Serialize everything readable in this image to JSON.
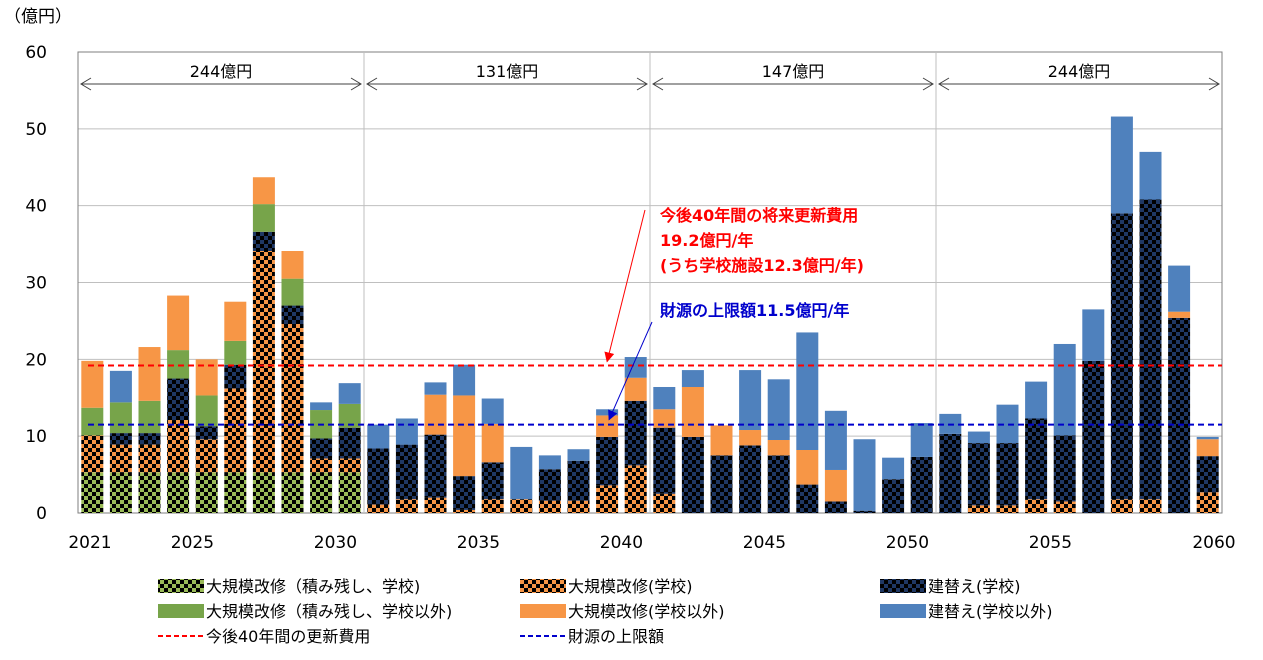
{
  "chart_data": {
    "type": "bar",
    "stacked": true,
    "unit_label": "（億円）",
    "ylim": [
      0,
      60
    ],
    "y_ticks": [
      "0",
      "10",
      "20",
      "30",
      "40",
      "50",
      "60"
    ],
    "x_tick_labels": [
      {
        "year": 2021,
        "label": "2021"
      },
      {
        "year": 2025,
        "label": "2025"
      },
      {
        "year": 2030,
        "label": "2030"
      },
      {
        "year": 2035,
        "label": "2035"
      },
      {
        "year": 2040,
        "label": "2040"
      },
      {
        "year": 2045,
        "label": "2045"
      },
      {
        "year": 2050,
        "label": "2050"
      },
      {
        "year": 2055,
        "label": "2055"
      },
      {
        "year": 2060,
        "label": "2060"
      }
    ],
    "categories": [
      2021,
      2022,
      2023,
      2024,
      2025,
      2026,
      2027,
      2028,
      2029,
      2030,
      2031,
      2032,
      2033,
      2034,
      2035,
      2036,
      2037,
      2038,
      2039,
      2040,
      2041,
      2042,
      2043,
      2044,
      2045,
      2046,
      2047,
      2048,
      2049,
      2050,
      2051,
      2052,
      2053,
      2054,
      2055,
      2056,
      2057,
      2058,
      2059,
      2060
    ],
    "series": [
      {
        "name": "大規模改修（積み残し、学校)",
        "pattern": "check-green",
        "values": [
          5.3,
          5.3,
          5.3,
          5.3,
          5.3,
          5.3,
          5.3,
          5.3,
          5.3,
          5.3,
          0,
          0,
          0,
          0,
          0,
          0,
          0,
          0,
          0,
          0,
          0,
          0,
          0,
          0,
          0,
          0,
          0,
          0,
          0,
          0,
          0,
          0,
          0,
          0,
          0,
          0,
          0,
          0,
          0,
          0
        ]
      },
      {
        "name": "大規模改修(学校)",
        "pattern": "check-orange",
        "values": [
          4.8,
          3.6,
          3.6,
          6.8,
          4.3,
          10.9,
          28.8,
          19.3,
          1.8,
          1.8,
          1.1,
          1.8,
          2.0,
          0.4,
          1.8,
          1.8,
          1.6,
          1.6,
          3.6,
          6.2,
          2.5,
          0,
          0,
          0,
          0,
          0,
          0,
          0,
          0,
          0,
          0,
          1.0,
          1.0,
          1.8,
          1.5,
          0,
          1.8,
          1.8,
          0,
          2.7
        ]
      },
      {
        "name": "建替え(学校)",
        "pattern": "check-navy",
        "values": [
          0,
          1.5,
          1.5,
          5.4,
          1.7,
          3.1,
          2.5,
          2.4,
          2.6,
          4.0,
          7.3,
          7.1,
          8.2,
          4.4,
          4.8,
          0,
          4.1,
          5.2,
          6.3,
          8.4,
          8.6,
          9.9,
          7.5,
          8.8,
          7.5,
          3.7,
          1.5,
          0.3,
          4.4,
          7.3,
          10.3,
          8.1,
          8.1,
          10.5,
          8.6,
          19.8,
          37.2,
          39.0,
          25.4,
          4.7
        ]
      },
      {
        "name": "大規模改修（積み残し、学校以外)",
        "pattern": "green",
        "values": [
          3.6,
          4.0,
          4.2,
          3.7,
          4.0,
          3.1,
          3.6,
          3.5,
          3.7,
          3.1,
          0,
          0,
          0,
          0,
          0,
          0,
          0,
          0,
          0,
          0,
          0,
          0,
          0,
          0,
          0,
          0,
          0,
          0,
          0,
          0,
          0,
          0,
          0,
          0,
          0,
          0,
          0,
          0,
          0,
          0
        ]
      },
      {
        "name": "大規模改修(学校以外)",
        "pattern": "orange",
        "values": [
          6.1,
          0,
          7.0,
          7.1,
          4.7,
          5.1,
          3.5,
          3.6,
          0,
          0,
          0,
          0,
          5.2,
          10.5,
          5.0,
          0,
          0,
          0,
          2.8,
          3.0,
          2.4,
          6.5,
          3.9,
          2.0,
          2.0,
          4.5,
          4.1,
          0,
          0,
          0,
          0,
          0,
          0,
          0,
          0,
          0,
          0,
          0,
          0.8,
          2.2
        ]
      },
      {
        "name": "建替え(学校以外)",
        "pattern": "blue",
        "values": [
          0,
          4.1,
          0,
          0,
          0,
          0,
          0,
          0,
          1.0,
          2.7,
          3.1,
          3.4,
          1.6,
          4.0,
          3.3,
          6.8,
          1.8,
          1.5,
          0.8,
          2.7,
          2.9,
          2.2,
          0,
          7.8,
          7.9,
          15.3,
          7.7,
          9.3,
          2.8,
          4.4,
          2.6,
          1.5,
          5.0,
          4.8,
          11.9,
          6.7,
          12.6,
          6.2,
          6.0,
          0.3
        ]
      }
    ],
    "colors": {
      "check_green_light": "#9BBB59",
      "check_orange_light": "#F79646",
      "check_dark": "#000000",
      "navy_light": "#1F3864",
      "green": "#77A44A",
      "orange": "#F79646",
      "blue": "#4F81BD",
      "red_line": "#FF0000",
      "blue_line": "#0000CC",
      "grid": "#BFBFBF"
    },
    "reference_lines": [
      {
        "name": "今後40年間の更新費用",
        "value": 19.2,
        "color": "#FF0000"
      },
      {
        "name": "財源の上限額",
        "value": 11.5,
        "color": "#0000CC"
      }
    ],
    "periods": [
      {
        "from": 2021,
        "to": 2030,
        "label": "244億円"
      },
      {
        "from": 2031,
        "to": 2040,
        "label": "131億円"
      },
      {
        "from": 2041,
        "to": 2050,
        "label": "147億円"
      },
      {
        "from": 2051,
        "to": 2060,
        "label": "244億円"
      }
    ],
    "annotations": [
      {
        "lines": [
          "今後40年間の将来更新費用",
          "19.2億円/年",
          "(うち学校施設12.3億円/年)"
        ],
        "color": "#FF0000",
        "target_year": 2039,
        "target_value": 19.2
      },
      {
        "lines": [
          "財源の上限額11.5億円/年"
        ],
        "color": "#0000CC",
        "target_year": 2039,
        "target_value": 11.5
      }
    ],
    "legend": {
      "placement": "bottom",
      "items": [
        {
          "label": "大規模改修（積み残し、学校)",
          "swatch": "check-green"
        },
        {
          "label": "大規模改修(学校)",
          "swatch": "check-orange"
        },
        {
          "label": "建替え(学校)",
          "swatch": "check-navy"
        },
        {
          "label": "大規模改修（積み残し、学校以外)",
          "swatch": "green"
        },
        {
          "label": "大規模改修(学校以外)",
          "swatch": "orange"
        },
        {
          "label": "建替え(学校以外)",
          "swatch": "blue"
        },
        {
          "label": "今後40年間の更新費用",
          "swatch": "red-dash"
        },
        {
          "label": "財源の上限額",
          "swatch": "blue-dash"
        }
      ]
    },
    "grid": true
  }
}
